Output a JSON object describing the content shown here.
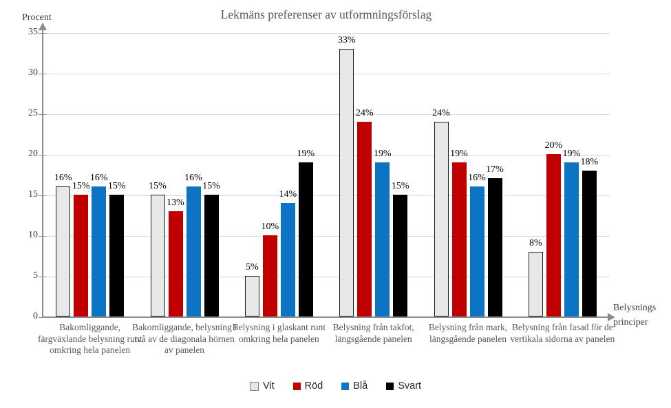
{
  "chart_data": {
    "type": "bar",
    "title": "Lekmäns preferenser av utformningsförslag",
    "y_axis_title": "Procent",
    "x_axis_title_lines": [
      "Belysnings",
      "principer"
    ],
    "ylim": [
      0,
      35
    ],
    "yticks": [
      0,
      5,
      10,
      15,
      20,
      25,
      30,
      35
    ],
    "grid": true,
    "legend_position": "bottom",
    "data_label_suffix": "%",
    "categories": [
      "Bakomliggande, färgväxlande belysning runt omkring hela panelen",
      "Bakomliggande, belysning i två av de diagonala hörnen av panelen",
      "Belysning i glaskant runt omkring hela panelen",
      "Belysning från takfot, längsgående panelen",
      "Belysning från mark, längsgående panelen",
      "Belysning från fasad för de vertikala sidorna av panelen"
    ],
    "series": [
      {
        "name": "Vit",
        "color": "#E8E8E8",
        "border_color": "#1A1A1A",
        "values": [
          16,
          15,
          5,
          33,
          24,
          8
        ]
      },
      {
        "name": "Röd",
        "color": "#C00000",
        "border_color": null,
        "values": [
          15,
          13,
          10,
          24,
          19,
          20
        ]
      },
      {
        "name": "Blå",
        "color": "#0D74C4",
        "border_color": null,
        "values": [
          16,
          16,
          14,
          19,
          16,
          19
        ]
      },
      {
        "name": "Svart",
        "color": "#000000",
        "border_color": null,
        "values": [
          15,
          15,
          19,
          15,
          17,
          18
        ]
      }
    ],
    "colors": {
      "axis": "#8C8C8C",
      "gridline": "#D9D9D9",
      "title_text": "#595959",
      "tick_text": "#404040",
      "category_text": "#595959",
      "data_label_text": "#000000"
    }
  }
}
